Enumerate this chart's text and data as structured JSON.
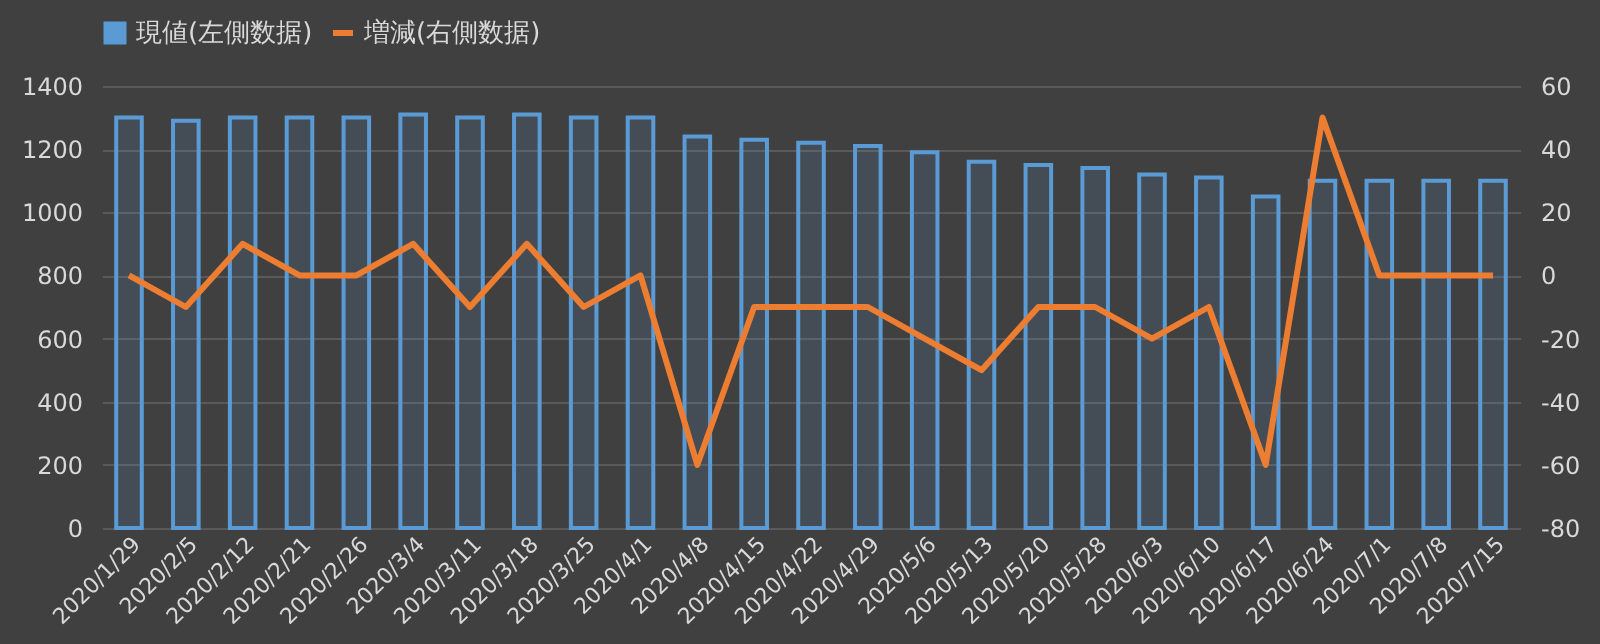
{
  "chart_data": {
    "type": "bar",
    "categories": [
      "2020/1/29",
      "2020/2/5",
      "2020/2/12",
      "2020/2/21",
      "2020/2/26",
      "2020/3/4",
      "2020/3/11",
      "2020/3/18",
      "2020/3/25",
      "2020/4/1",
      "2020/4/8",
      "2020/4/15",
      "2020/4/22",
      "2020/4/29",
      "2020/5/6",
      "2020/5/13",
      "2020/5/20",
      "2020/5/28",
      "2020/6/3",
      "2020/6/10",
      "2020/6/17",
      "2020/6/24",
      "2020/7/1",
      "2020/7/8",
      "2020/7/15"
    ],
    "series": [
      {
        "name": "現値(左側数据)",
        "color": "#5b9bd5",
        "values": [
          1300,
          1290,
          1300,
          1300,
          1300,
          1310,
          1300,
          1310,
          1300,
          1300,
          1240,
          1230,
          1220,
          1210,
          1190,
          1160,
          1150,
          1140,
          1120,
          1110,
          1050,
          1100,
          1100,
          1100,
          1100
        ]
      },
      {
        "name": "増減(右側数据)",
        "type": "line",
        "axis": "y2",
        "color": "#ed7d31",
        "values": [
          0,
          -10,
          10,
          0,
          0,
          10,
          -10,
          10,
          -10,
          0,
          -60,
          -10,
          -10,
          -10,
          -20,
          -30,
          -10,
          -10,
          -20,
          -10,
          -60,
          50,
          0,
          0,
          0
        ]
      }
    ],
    "ylim": [
      0,
      1400
    ],
    "yticks": [
      0,
      200,
      400,
      600,
      800,
      1000,
      1200,
      1400
    ],
    "y2lim": [
      -80,
      60
    ],
    "y2ticks": [
      -80,
      -60,
      -40,
      -20,
      0,
      20,
      40,
      60
    ],
    "grid": "y",
    "legend": "top"
  }
}
